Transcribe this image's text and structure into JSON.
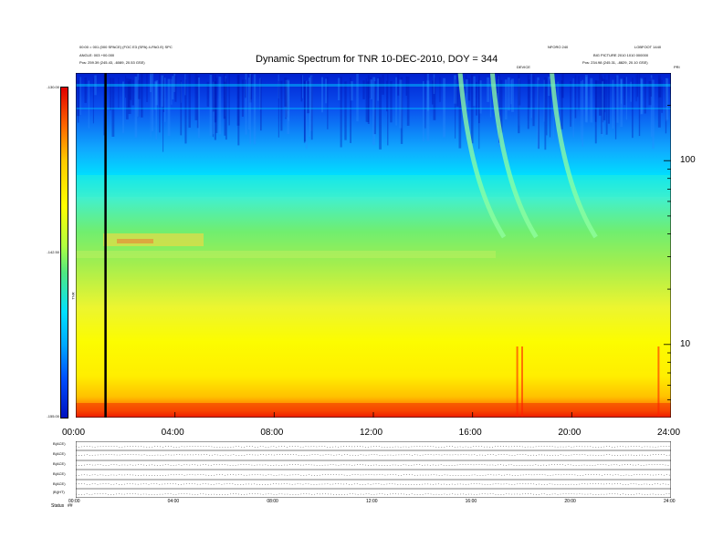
{
  "header": {
    "title": "Dynamic Spectrum for TNR 10-DEC-2010, DOY = 344",
    "left_line1": "00:00 = 001 (000 SPACE) (FOC E3 (SPA) 4-PAO.E) SPC",
    "left_line2": "ANGLE: 003 +00.000",
    "left_line3": "Pos:   259.39 (245.43, -6089, 20.53 GSE)",
    "right_line1a": "NFORO 240",
    "right_line1b": "LOBFOOT 1440",
    "right_line2": "BIG PICTURE 2010 1010 000000",
    "right_line3": "Pos:   234.98 (245.31, -8829, 20.10 GSE)",
    "marker_label": "DEVICE",
    "corner_label": "PRI"
  },
  "colorbar": {
    "unit": "TNR",
    "tick_labels": [
      "-130.00",
      "-142.50",
      "-155.00"
    ],
    "tick_fracs": [
      0,
      0.5,
      1
    ],
    "colors": [
      "#e00000",
      "#ff6a00",
      "#ffc800",
      "#ffff00",
      "#b0ff40",
      "#50e880",
      "#00e0ff",
      "#00a8ff",
      "#0050ff",
      "#0010c0"
    ]
  },
  "chart_data": {
    "type": "heatmap",
    "title": "Dynamic Spectrum for TNR 10-DEC-2010, DOY = 344",
    "x_tick_labels": [
      "00:00",
      "04:00",
      "08:00",
      "12:00",
      "16:00",
      "20:00",
      "24:00"
    ],
    "x_range_hours": [
      0,
      24
    ],
    "y_scale": "log",
    "y_range_khz": [
      4,
      300
    ],
    "y_tick_labels": [
      "100",
      "10"
    ],
    "y_ticks": [
      100,
      10
    ],
    "colorbar_range": [
      -155.0,
      -130.0
    ],
    "marker_time_hours": 1.2,
    "bursts_hours": [
      15.5,
      16.8,
      19.2
    ],
    "spike_times_hours": [
      17.8,
      18.0,
      23.5
    ]
  },
  "lower_panels": {
    "labels": [
      "B(ACE)",
      "B(ACE)",
      "B(ACE)",
      "B(ACE)",
      "B(ACE)",
      "|B|(HT)"
    ],
    "x_tick_labels": [
      "00:00",
      "04:00",
      "08:00",
      "12:00",
      "16:00",
      "20:00",
      "24:00"
    ],
    "status_label": "Status",
    "status_value": "##"
  }
}
